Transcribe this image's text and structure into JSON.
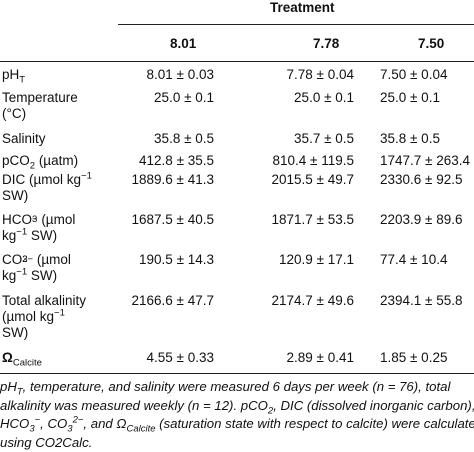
{
  "header": {
    "group_label": "Treatment",
    "columns": [
      "8.01",
      "7.78",
      "7.50"
    ]
  },
  "rows": [
    {
      "label_main": "pH",
      "label_sub": "T",
      "values": [
        "8.01 ± 0.03",
        "7.78 ± 0.04",
        "7.50 ± 0.04"
      ]
    },
    {
      "label_line1": "Temperature",
      "label_line2": "(°C)",
      "values": [
        "25.0 ± 0.1",
        "25.0 ± 0.1",
        "25.0 ± 0.1"
      ]
    },
    {
      "label": "Salinity",
      "values": [
        "35.8 ± 0.5",
        "35.7 ± 0.5",
        "35.8 ± 0.5"
      ]
    },
    {
      "label_pre": "pCO",
      "label_sub": "2",
      "label_post": " (µatm)",
      "values": [
        "412.8 ± 35.5",
        "810.4 ± 119.5",
        "1747.7 ± 263.4"
      ]
    },
    {
      "label_line1": "DIC (µmol kg",
      "label_sup": "−1",
      "label_line2": "SW)",
      "values": [
        "1889.6 ± 41.3",
        "2015.5 ± 49.7",
        "2330.6 ± 92.5"
      ]
    },
    {
      "label_pre": "HCO",
      "label_sup": "−",
      "label_sub": "3",
      "label_post": " (µmol",
      "label_line2_pre": "kg",
      "label_line2_sup": "−1",
      "label_line2_post": " SW)",
      "values": [
        "1687.5 ± 40.5",
        "1871.7 ± 53.5",
        "2203.9 ± 89.6"
      ]
    },
    {
      "label_pre": "CO",
      "label_sup": "2−",
      "label_sub": "3",
      "label_post": " (µmol",
      "label_line2_pre": "kg",
      "label_line2_sup": "−1",
      "label_line2_post": " SW)",
      "values": [
        "190.5 ± 14.3",
        "120.9 ± 17.1",
        "77.4 ± 10.4"
      ]
    },
    {
      "label_line1": "Total alkalinity",
      "label_line2_pre": "(µmol kg",
      "label_line2_sup": "−1",
      "label_line3": "SW)",
      "values": [
        "2166.6 ± 47.7",
        "2174.7 ± 49.6",
        "2394.1 ± 55.8"
      ]
    },
    {
      "label_main": "Ω",
      "label_sub": "Calcite",
      "values": [
        "4.55 ± 0.33",
        "2.89 ± 0.41",
        "1.85 ± 0.25"
      ]
    }
  ],
  "footnote": {
    "l1_a": "pH",
    "l1_sub": "T",
    "l1_b": ", temperature, and salinity were measured 6 days per week (n = 76), total",
    "l2": "alkalinity was measured weekly (n = 12). pCO",
    "l2_sub": "2",
    "l2_b": ", DIC (dissolved inorganic carbon),",
    "l3_a": "HCO",
    "l3_sub": "3",
    "l3_sup": "−",
    "l3_b": ", CO",
    "l3_sub2": "3",
    "l3_sup2": "2−",
    "l3_c": ", and Ω",
    "l3_sub3": "Calcite",
    "l3_d": " (saturation state with respect to calcite) were calculated",
    "l4": "using CO2Calc."
  }
}
